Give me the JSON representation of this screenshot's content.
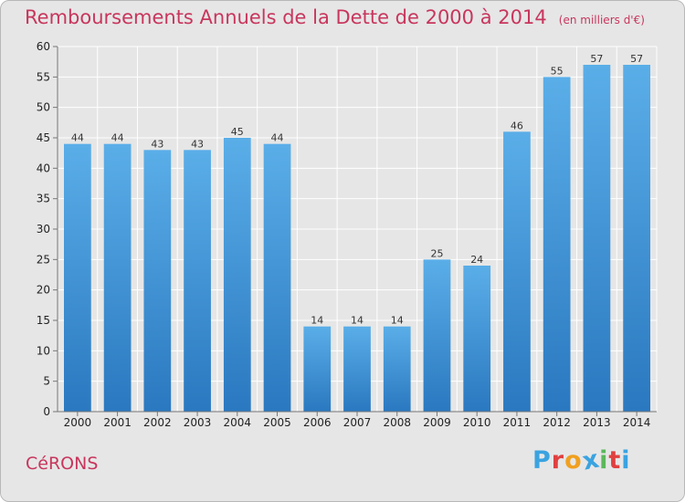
{
  "chart_data": {
    "type": "bar",
    "title": "Remboursements Annuels de la Dette de 2000 à 2014",
    "subtitle": "(en milliers d'€)",
    "categories": [
      "2000",
      "2001",
      "2002",
      "2003",
      "2004",
      "2005",
      "2006",
      "2007",
      "2008",
      "2009",
      "2010",
      "2011",
      "2012",
      "2013",
      "2014"
    ],
    "values": [
      44,
      44,
      43,
      43,
      45,
      44,
      14,
      14,
      14,
      25,
      24,
      46,
      55,
      57,
      57
    ],
    "ylim": [
      0,
      60
    ],
    "yticks": [
      0,
      5,
      10,
      15,
      20,
      25,
      30,
      35,
      40,
      45,
      50,
      55,
      60
    ],
    "grid": true,
    "bar_color": "#3d8fd8",
    "bar_color_light": "#5aaee8",
    "grid_color": "#ffffff"
  },
  "footer": {
    "town": "CéRONS",
    "logo_letters": [
      "P",
      "r",
      "o",
      "x",
      "i",
      "t",
      "i"
    ],
    "logo_colors": [
      "#3aa3e0",
      "#e04040",
      "#f0a020",
      "#3aa3e0",
      "#5cb85c",
      "#e04040",
      "#3aa3e0"
    ]
  }
}
